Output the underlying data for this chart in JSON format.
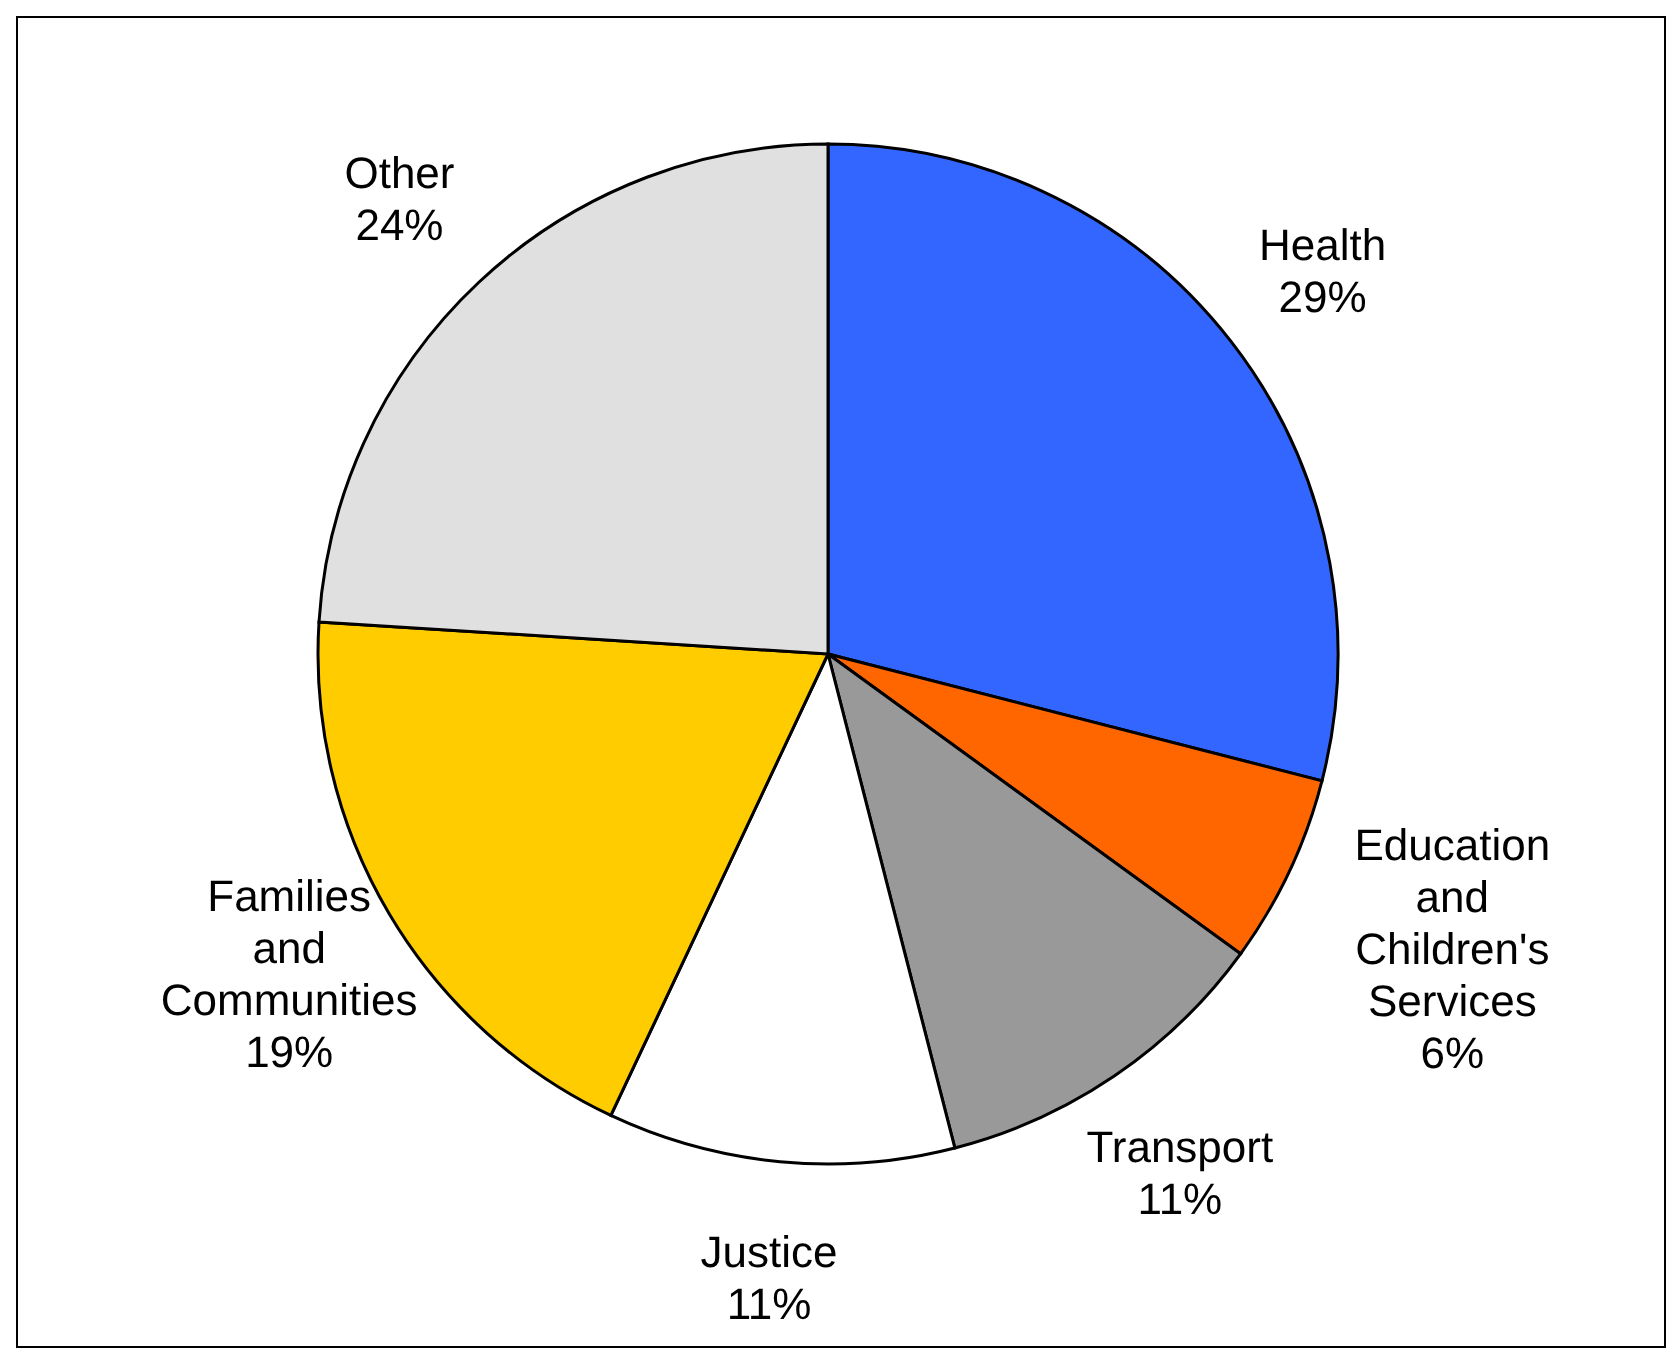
{
  "chart_data": {
    "type": "pie",
    "categories": [
      "Health",
      "Education and Children's Services",
      "Transport",
      "Justice",
      "Families and Communities",
      "Other"
    ],
    "values": [
      29,
      6,
      11,
      11,
      19,
      24
    ],
    "value_labels": [
      "29%",
      "6%",
      "11%",
      "11%",
      "19%",
      "24%"
    ],
    "colors": [
      "#3366ff",
      "#ff6600",
      "#999999",
      "#ffffff",
      "#ffcc00",
      "#e0e0e0"
    ],
    "legend": false
  }
}
